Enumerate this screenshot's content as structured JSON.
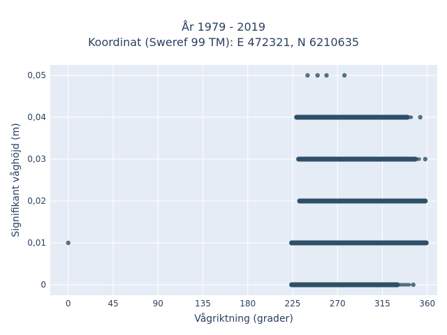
{
  "chart_data": {
    "type": "scatter",
    "title": "År 1979 - 2019",
    "subtitle": "Koordinat (Sweref 99 TM): E 472321, N 6210635",
    "xlabel": "Vågriktning (grader)",
    "ylabel": "Signifikant våghöjd (m)",
    "xlim": [
      -18,
      370
    ],
    "ylim": [
      -0.0025,
      0.0525
    ],
    "x_ticks": [
      0,
      45,
      90,
      135,
      180,
      225,
      270,
      315,
      360
    ],
    "x_tick_labels": [
      "0",
      "45",
      "90",
      "135",
      "180",
      "225",
      "270",
      "315",
      "360"
    ],
    "y_ticks": [
      0,
      0.01,
      0.02,
      0.03,
      0.04,
      0.05
    ],
    "y_tick_labels": [
      "0",
      "0,01",
      "0,02",
      "0,03",
      "0,04",
      "0,05"
    ],
    "grid": true,
    "legend": "none",
    "marker_color": "#2e5068",
    "plot_background": "#e5ecf6",
    "point_bands": [
      {
        "y": 0,
        "x_start": 224,
        "x_end": 342,
        "dense_end": 330
      },
      {
        "y": 0.01,
        "x_start": 224,
        "x_end": 359,
        "dense_end": 359
      },
      {
        "y": 0.02,
        "x_start": 232,
        "x_end": 358,
        "dense_end": 358
      },
      {
        "y": 0.03,
        "x_start": 231,
        "x_end": 352,
        "dense_end": 348
      },
      {
        "y": 0.04,
        "x_start": 229,
        "x_end": 344,
        "dense_end": 340
      }
    ],
    "points": [
      {
        "x": 0,
        "y": 0.01
      },
      {
        "x": 240,
        "y": 0.05
      },
      {
        "x": 250,
        "y": 0.05
      },
      {
        "x": 259,
        "y": 0.05
      },
      {
        "x": 277,
        "y": 0.05
      },
      {
        "x": 353,
        "y": 0.04
      },
      {
        "x": 358,
        "y": 0.03
      },
      {
        "x": 346,
        "y": 0
      }
    ]
  }
}
